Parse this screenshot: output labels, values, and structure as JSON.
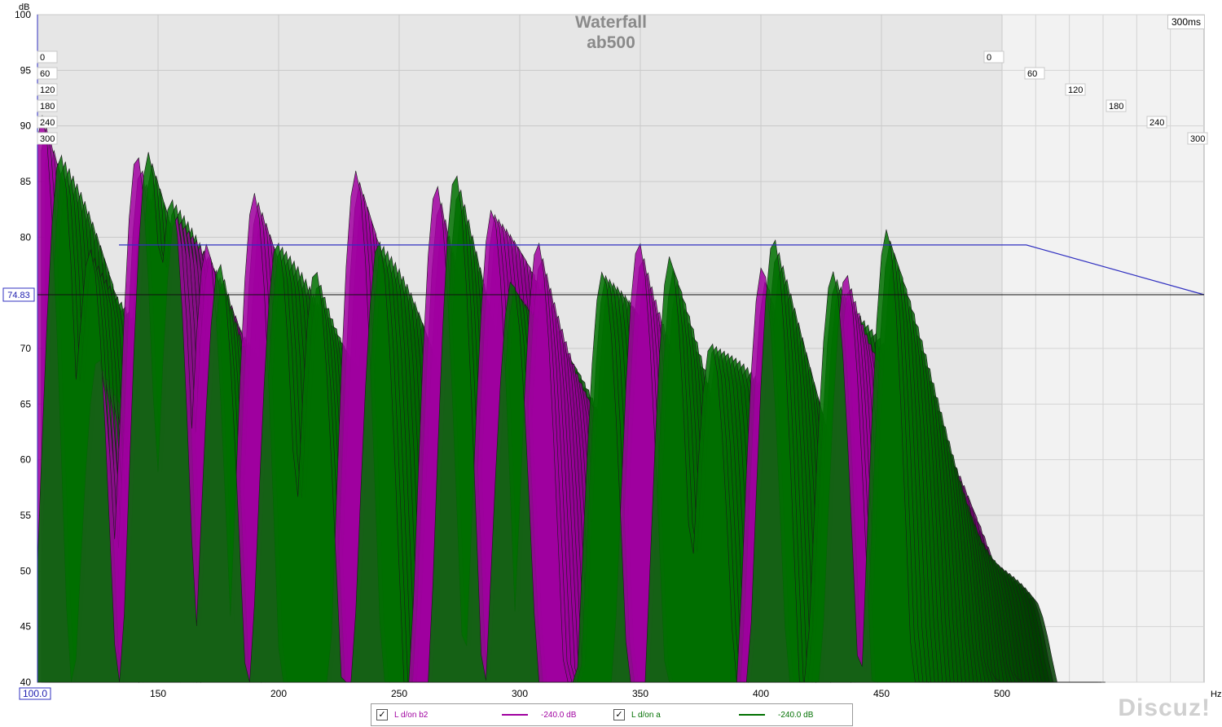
{
  "chart_data": {
    "type": "waterfall",
    "title": "Waterfall",
    "subtitle": "ab500",
    "time_window_label": "300ms",
    "y_unit": "dB",
    "x_unit": "Hz",
    "xlim": [
      100,
      500
    ],
    "ylim": [
      40,
      100
    ],
    "y_ticks": [
      "100",
      "95",
      "90",
      "85",
      "80",
      "75",
      "70",
      "65",
      "60",
      "55",
      "50",
      "45",
      "40"
    ],
    "x_ticks": [
      "100.0",
      "150",
      "200",
      "250",
      "300",
      "350",
      "400",
      "450",
      "500"
    ],
    "cursor_value": "74.83",
    "time_slices": [
      "0",
      "60",
      "120",
      "180",
      "240",
      "300"
    ],
    "series": [
      {
        "name": "L d/on b2",
        "color": "#a000a0",
        "value_label": "-240.0 dB",
        "peaks": [
          [
            102,
            87
          ],
          [
            125,
            73
          ],
          [
            141,
            84
          ],
          [
            158,
            83
          ],
          [
            170,
            83
          ],
          [
            190,
            80
          ],
          [
            232,
            82
          ],
          [
            265,
            85
          ],
          [
            289,
            83
          ],
          [
            307,
            81
          ],
          [
            349,
            82
          ],
          [
            400,
            76
          ],
          [
            435,
            80
          ]
        ]
      },
      {
        "name": "L d/on a",
        "color": "#007000",
        "value_label": "-240.0 dB",
        "peaks": [
          [
            110,
            87
          ],
          [
            122,
            84
          ],
          [
            146,
            85
          ],
          [
            156,
            84
          ],
          [
            175,
            81
          ],
          [
            200,
            80
          ],
          [
            215,
            82
          ],
          [
            242,
            79
          ],
          [
            273,
            84
          ],
          [
            297,
            81
          ],
          [
            335,
            79
          ],
          [
            362,
            76
          ],
          [
            380,
            73
          ],
          [
            405,
            78
          ],
          [
            430,
            82
          ],
          [
            452,
            78
          ]
        ]
      }
    ]
  },
  "legend": {
    "check": "✓",
    "items": [
      {
        "label": "L d/on b2",
        "value": "-240.0 dB"
      },
      {
        "label": "L d/on a",
        "value": "-240.0 dB"
      }
    ]
  },
  "watermark": "Discuz!"
}
